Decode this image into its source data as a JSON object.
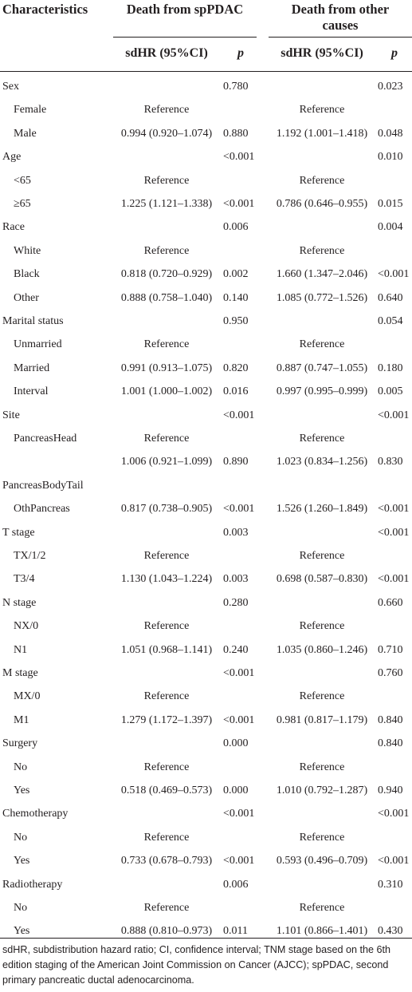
{
  "header": {
    "characteristics": "Characteristics",
    "group1": "Death from spPDAC",
    "group2_line1": "Death from other",
    "group2_line2": "causes",
    "sdhr": "sdHR (95%CI)",
    "p": "p"
  },
  "rows": [
    {
      "label": "Sex",
      "indent": false,
      "hr1": "",
      "p1": "0.780",
      "hr2": "",
      "p2": "0.023"
    },
    {
      "label": "Female",
      "indent": true,
      "hr1": "Reference",
      "p1": "",
      "hr2": "Reference",
      "p2": ""
    },
    {
      "label": "Male",
      "indent": true,
      "hr1": "0.994 (0.920–1.074)",
      "p1": "0.880",
      "hr2": "1.192 (1.001–1.418)",
      "p2": "0.048"
    },
    {
      "label": "Age",
      "indent": false,
      "hr1": "",
      "p1": "<0.001",
      "hr2": "",
      "p2": "0.010"
    },
    {
      "label": "<65",
      "indent": true,
      "hr1": "Reference",
      "p1": "",
      "hr2": "Reference",
      "p2": ""
    },
    {
      "label": "≥65",
      "indent": true,
      "hr1": "1.225 (1.121–1.338)",
      "p1": "<0.001",
      "hr2": "0.786 (0.646–0.955)",
      "p2": "0.015"
    },
    {
      "label": "Race",
      "indent": false,
      "hr1": "",
      "p1": "0.006",
      "hr2": "",
      "p2": "0.004"
    },
    {
      "label": "White",
      "indent": true,
      "hr1": "Reference",
      "p1": "",
      "hr2": "Reference",
      "p2": ""
    },
    {
      "label": "Black",
      "indent": true,
      "hr1": "0.818 (0.720–0.929)",
      "p1": "0.002",
      "hr2": "1.660 (1.347–2.046)",
      "p2": "<0.001"
    },
    {
      "label": "Other",
      "indent": true,
      "hr1": "0.888 (0.758–1.040)",
      "p1": "0.140",
      "hr2": "1.085 (0.772–1.526)",
      "p2": "0.640"
    },
    {
      "label": "Marital status",
      "indent": false,
      "hr1": "",
      "p1": "0.950",
      "hr2": "",
      "p2": "0.054"
    },
    {
      "label": "Unmarried",
      "indent": true,
      "hr1": "Reference",
      "p1": "",
      "hr2": "Reference",
      "p2": ""
    },
    {
      "label": "Married",
      "indent": true,
      "hr1": "0.991 (0.913–1.075)",
      "p1": "0.820",
      "hr2": "0.887 (0.747–1.055)",
      "p2": "0.180"
    },
    {
      "label": "Interval",
      "indent": true,
      "hr1": "1.001 (1.000–1.002)",
      "p1": "0.016",
      "hr2": "0.997 (0.995–0.999)",
      "p2": "0.005"
    },
    {
      "label": "Site",
      "indent": false,
      "hr1": "",
      "p1": "<0.001",
      "hr2": "",
      "p2": "<0.001"
    },
    {
      "label": "PancreasHead",
      "indent": true,
      "hr1": "Reference",
      "p1": "",
      "hr2": "Reference",
      "p2": ""
    },
    {
      "label": "",
      "indent": true,
      "hr1": "1.006 (0.921–1.099)",
      "p1": "0.890",
      "hr2": "1.023 (0.834–1.256)",
      "p2": "0.830"
    },
    {
      "label": "PancreasBodyTail",
      "indent": false,
      "hr1": "",
      "p1": "",
      "hr2": "",
      "p2": ""
    },
    {
      "label": "OthPancreas",
      "indent": true,
      "hr1": "0.817 (0.738–0.905)",
      "p1": "<0.001",
      "hr2": "1.526 (1.260–1.849)",
      "p2": "<0.001"
    },
    {
      "label": "T stage",
      "indent": false,
      "hr1": "",
      "p1": "0.003",
      "hr2": "",
      "p2": "<0.001"
    },
    {
      "label": "TX/1/2",
      "indent": true,
      "hr1": "Reference",
      "p1": "",
      "hr2": "Reference",
      "p2": ""
    },
    {
      "label": "T3/4",
      "indent": true,
      "hr1": "1.130 (1.043–1.224)",
      "p1": "0.003",
      "hr2": "0.698 (0.587–0.830)",
      "p2": "<0.001"
    },
    {
      "label": "N stage",
      "indent": false,
      "hr1": "",
      "p1": "0.280",
      "hr2": "",
      "p2": "0.660"
    },
    {
      "label": "NX/0",
      "indent": true,
      "hr1": "Reference",
      "p1": "",
      "hr2": "Reference",
      "p2": ""
    },
    {
      "label": "N1",
      "indent": true,
      "hr1": "1.051 (0.968–1.141)",
      "p1": "0.240",
      "hr2": "1.035 (0.860–1.246)",
      "p2": "0.710"
    },
    {
      "label": "M stage",
      "indent": false,
      "hr1": "",
      "p1": "<0.001",
      "hr2": "",
      "p2": "0.760"
    },
    {
      "label": "MX/0",
      "indent": true,
      "hr1": "Reference",
      "p1": "",
      "hr2": "Reference",
      "p2": ""
    },
    {
      "label": "M1",
      "indent": true,
      "hr1": "1.279 (1.172–1.397)",
      "p1": "<0.001",
      "hr2": "0.981 (0.817–1.179)",
      "p2": "0.840"
    },
    {
      "label": "Surgery",
      "indent": false,
      "hr1": "",
      "p1": "0.000",
      "hr2": "",
      "p2": "0.840"
    },
    {
      "label": "No",
      "indent": true,
      "hr1": "Reference",
      "p1": "",
      "hr2": "Reference",
      "p2": ""
    },
    {
      "label": "Yes",
      "indent": true,
      "hr1": "0.518 (0.469–0.573)",
      "p1": "0.000",
      "hr2": "1.010 (0.792–1.287)",
      "p2": "0.940"
    },
    {
      "label": "Chemotherapy",
      "indent": false,
      "hr1": "",
      "p1": "<0.001",
      "hr2": "",
      "p2": "<0.001"
    },
    {
      "label": "No",
      "indent": true,
      "hr1": "Reference",
      "p1": "",
      "hr2": "Reference",
      "p2": ""
    },
    {
      "label": "Yes",
      "indent": true,
      "hr1": "0.733 (0.678–0.793)",
      "p1": "<0.001",
      "hr2": "0.593 (0.496–0.709)",
      "p2": "<0.001"
    },
    {
      "label": "Radiotherapy",
      "indent": false,
      "hr1": "",
      "p1": "0.006",
      "hr2": "",
      "p2": "0.310"
    },
    {
      "label": "No",
      "indent": true,
      "hr1": "Reference",
      "p1": "",
      "hr2": "Reference",
      "p2": ""
    },
    {
      "label": "Yes",
      "indent": true,
      "hr1": "0.888 (0.810–0.973)",
      "p1": "0.011",
      "hr2": "1.101 (0.866–1.401)",
      "p2": "0.430"
    }
  ],
  "footnote": "sdHR, subdistribution hazard ratio; CI, confidence interval; TNM stage based on the 6th edition staging of the American Joint Commission on Cancer (AJCC); spPDAC, second primary pancreatic ductal adenocarcinoma."
}
